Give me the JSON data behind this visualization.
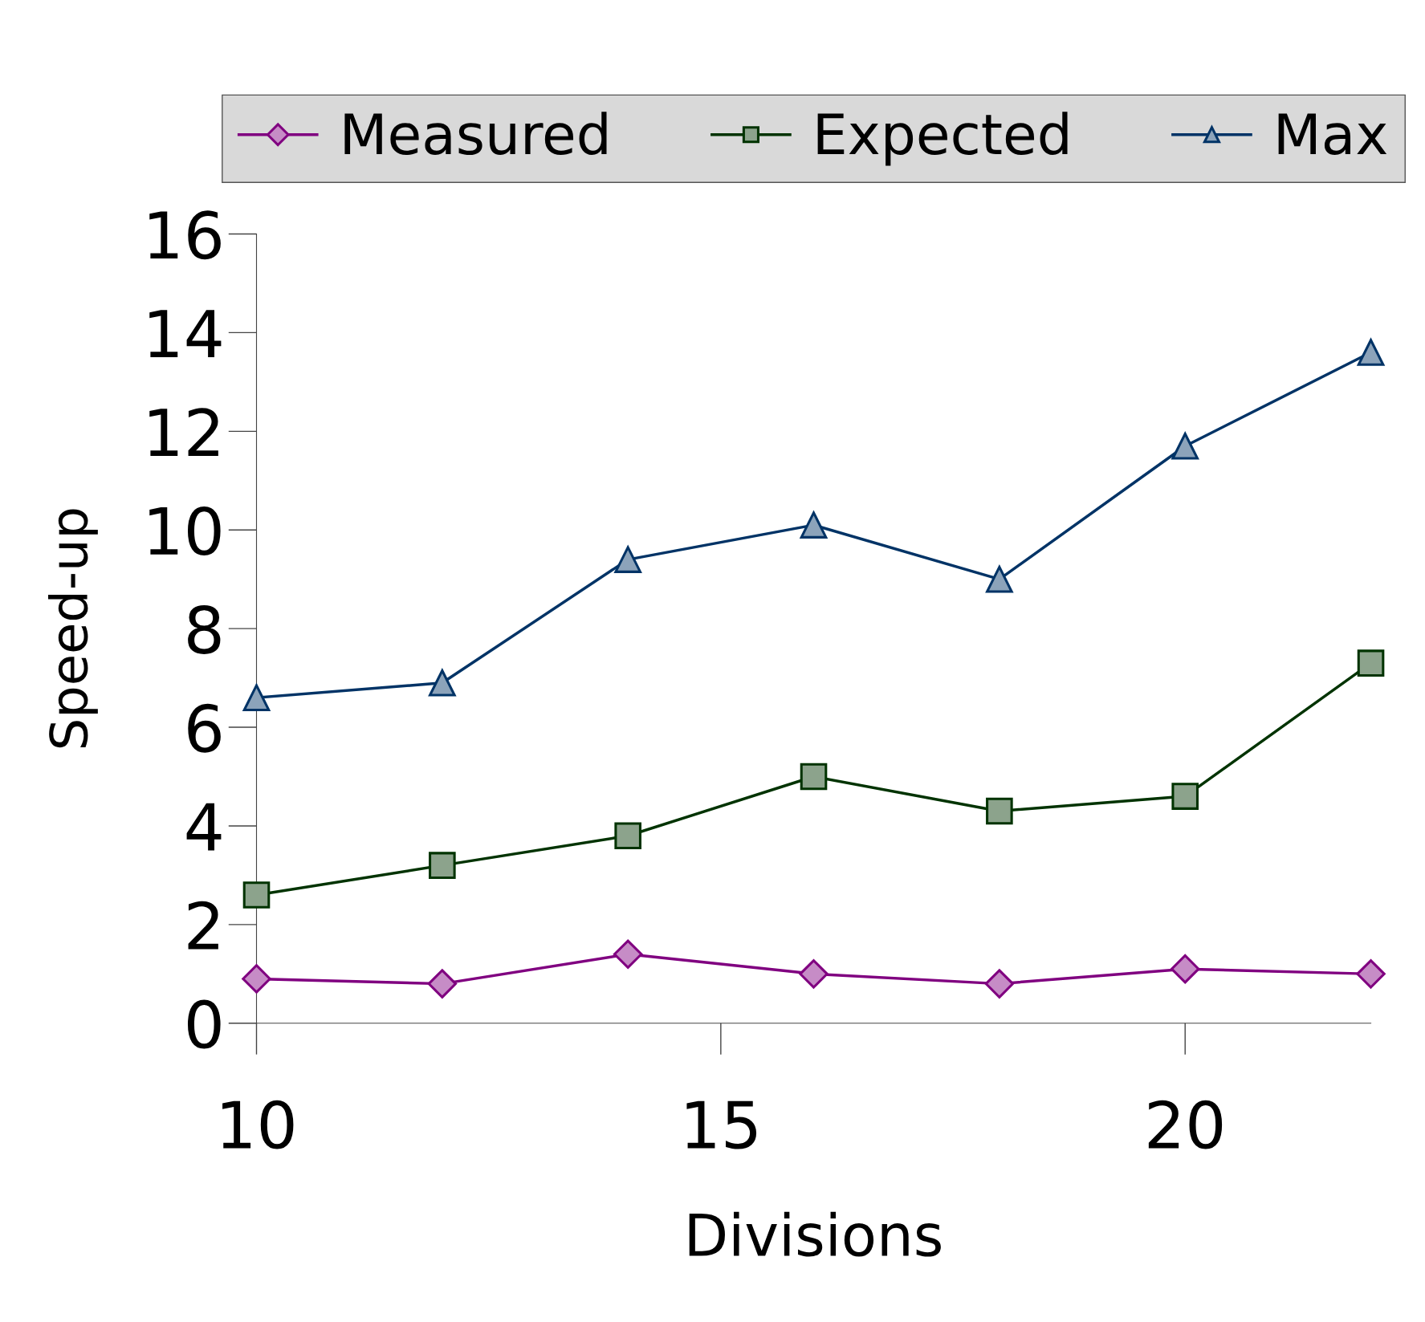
{
  "chart_data": {
    "type": "line",
    "xlabel": "Divisions",
    "ylabel": "Speed-up",
    "x": [
      10,
      12,
      14,
      16,
      18,
      20,
      22
    ],
    "xlim": [
      10,
      22
    ],
    "xticks": [
      10,
      15,
      20
    ],
    "ylim": [
      0,
      16
    ],
    "yticks": [
      0,
      2,
      4,
      6,
      8,
      10,
      12,
      14,
      16
    ],
    "grid": false,
    "legend": "top",
    "series": [
      {
        "name": "Measured",
        "color": "#800080",
        "marker": "diamond",
        "values": [
          0.9,
          0.8,
          1.4,
          1.0,
          0.8,
          1.1,
          1.0
        ]
      },
      {
        "name": "Expected",
        "color": "#003300",
        "marker": "square",
        "values": [
          2.6,
          3.2,
          3.8,
          5.0,
          4.3,
          4.6,
          7.3
        ]
      },
      {
        "name": "Max",
        "color": "#003366",
        "marker": "triangle",
        "values": [
          6.6,
          6.9,
          9.4,
          10.1,
          9.0,
          11.7,
          13.6
        ]
      }
    ]
  }
}
